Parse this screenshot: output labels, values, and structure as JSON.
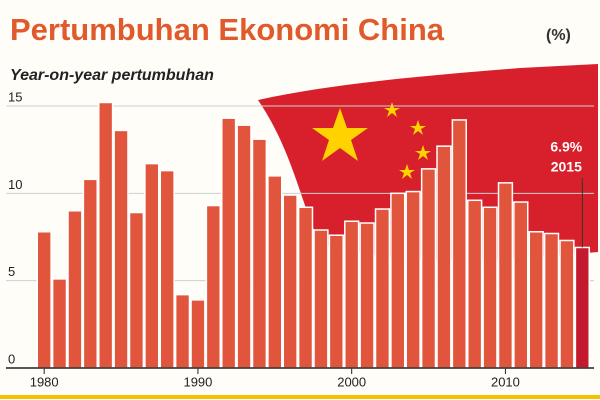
{
  "chart_data": {
    "type": "bar",
    "title": "Pertumbuhan Ekonomi China",
    "unit": "(%)",
    "subtitle": "Year-on-year pertumbuhan",
    "x": [
      1980,
      1981,
      1982,
      1983,
      1984,
      1985,
      1986,
      1987,
      1988,
      1989,
      1990,
      1991,
      1992,
      1993,
      1994,
      1995,
      1996,
      1997,
      1998,
      1999,
      2000,
      2001,
      2002,
      2003,
      2004,
      2005,
      2006,
      2007,
      2008,
      2009,
      2010,
      2011,
      2012,
      2013,
      2014,
      2015
    ],
    "values": [
      7.8,
      5.1,
      9.0,
      10.8,
      15.2,
      13.6,
      8.9,
      11.7,
      11.3,
      4.2,
      3.9,
      9.3,
      14.3,
      13.9,
      13.1,
      11.0,
      9.9,
      9.2,
      7.9,
      7.6,
      8.4,
      8.3,
      9.1,
      10.0,
      10.1,
      11.4,
      12.7,
      14.2,
      9.6,
      9.2,
      10.6,
      9.5,
      7.8,
      7.7,
      7.3,
      6.9
    ],
    "value_labels": [
      null,
      null,
      null,
      null,
      null,
      null,
      null,
      null,
      null,
      null,
      null,
      null,
      null,
      null,
      null,
      null,
      null,
      null,
      null,
      null,
      null,
      null,
      null,
      null,
      null,
      null,
      null,
      null,
      null,
      null,
      null,
      null,
      null,
      null,
      null,
      "6.9%"
    ],
    "annotation": "2015",
    "color": "#e0553c",
    "highlight_color": "#c41a2e",
    "xlim": [
      1979.5,
      2015.5
    ],
    "xticks": [
      1980,
      1990,
      2000,
      2010
    ],
    "ylim": [
      0,
      16
    ],
    "yticks": [
      0,
      5,
      10,
      15
    ],
    "grid": true
  }
}
